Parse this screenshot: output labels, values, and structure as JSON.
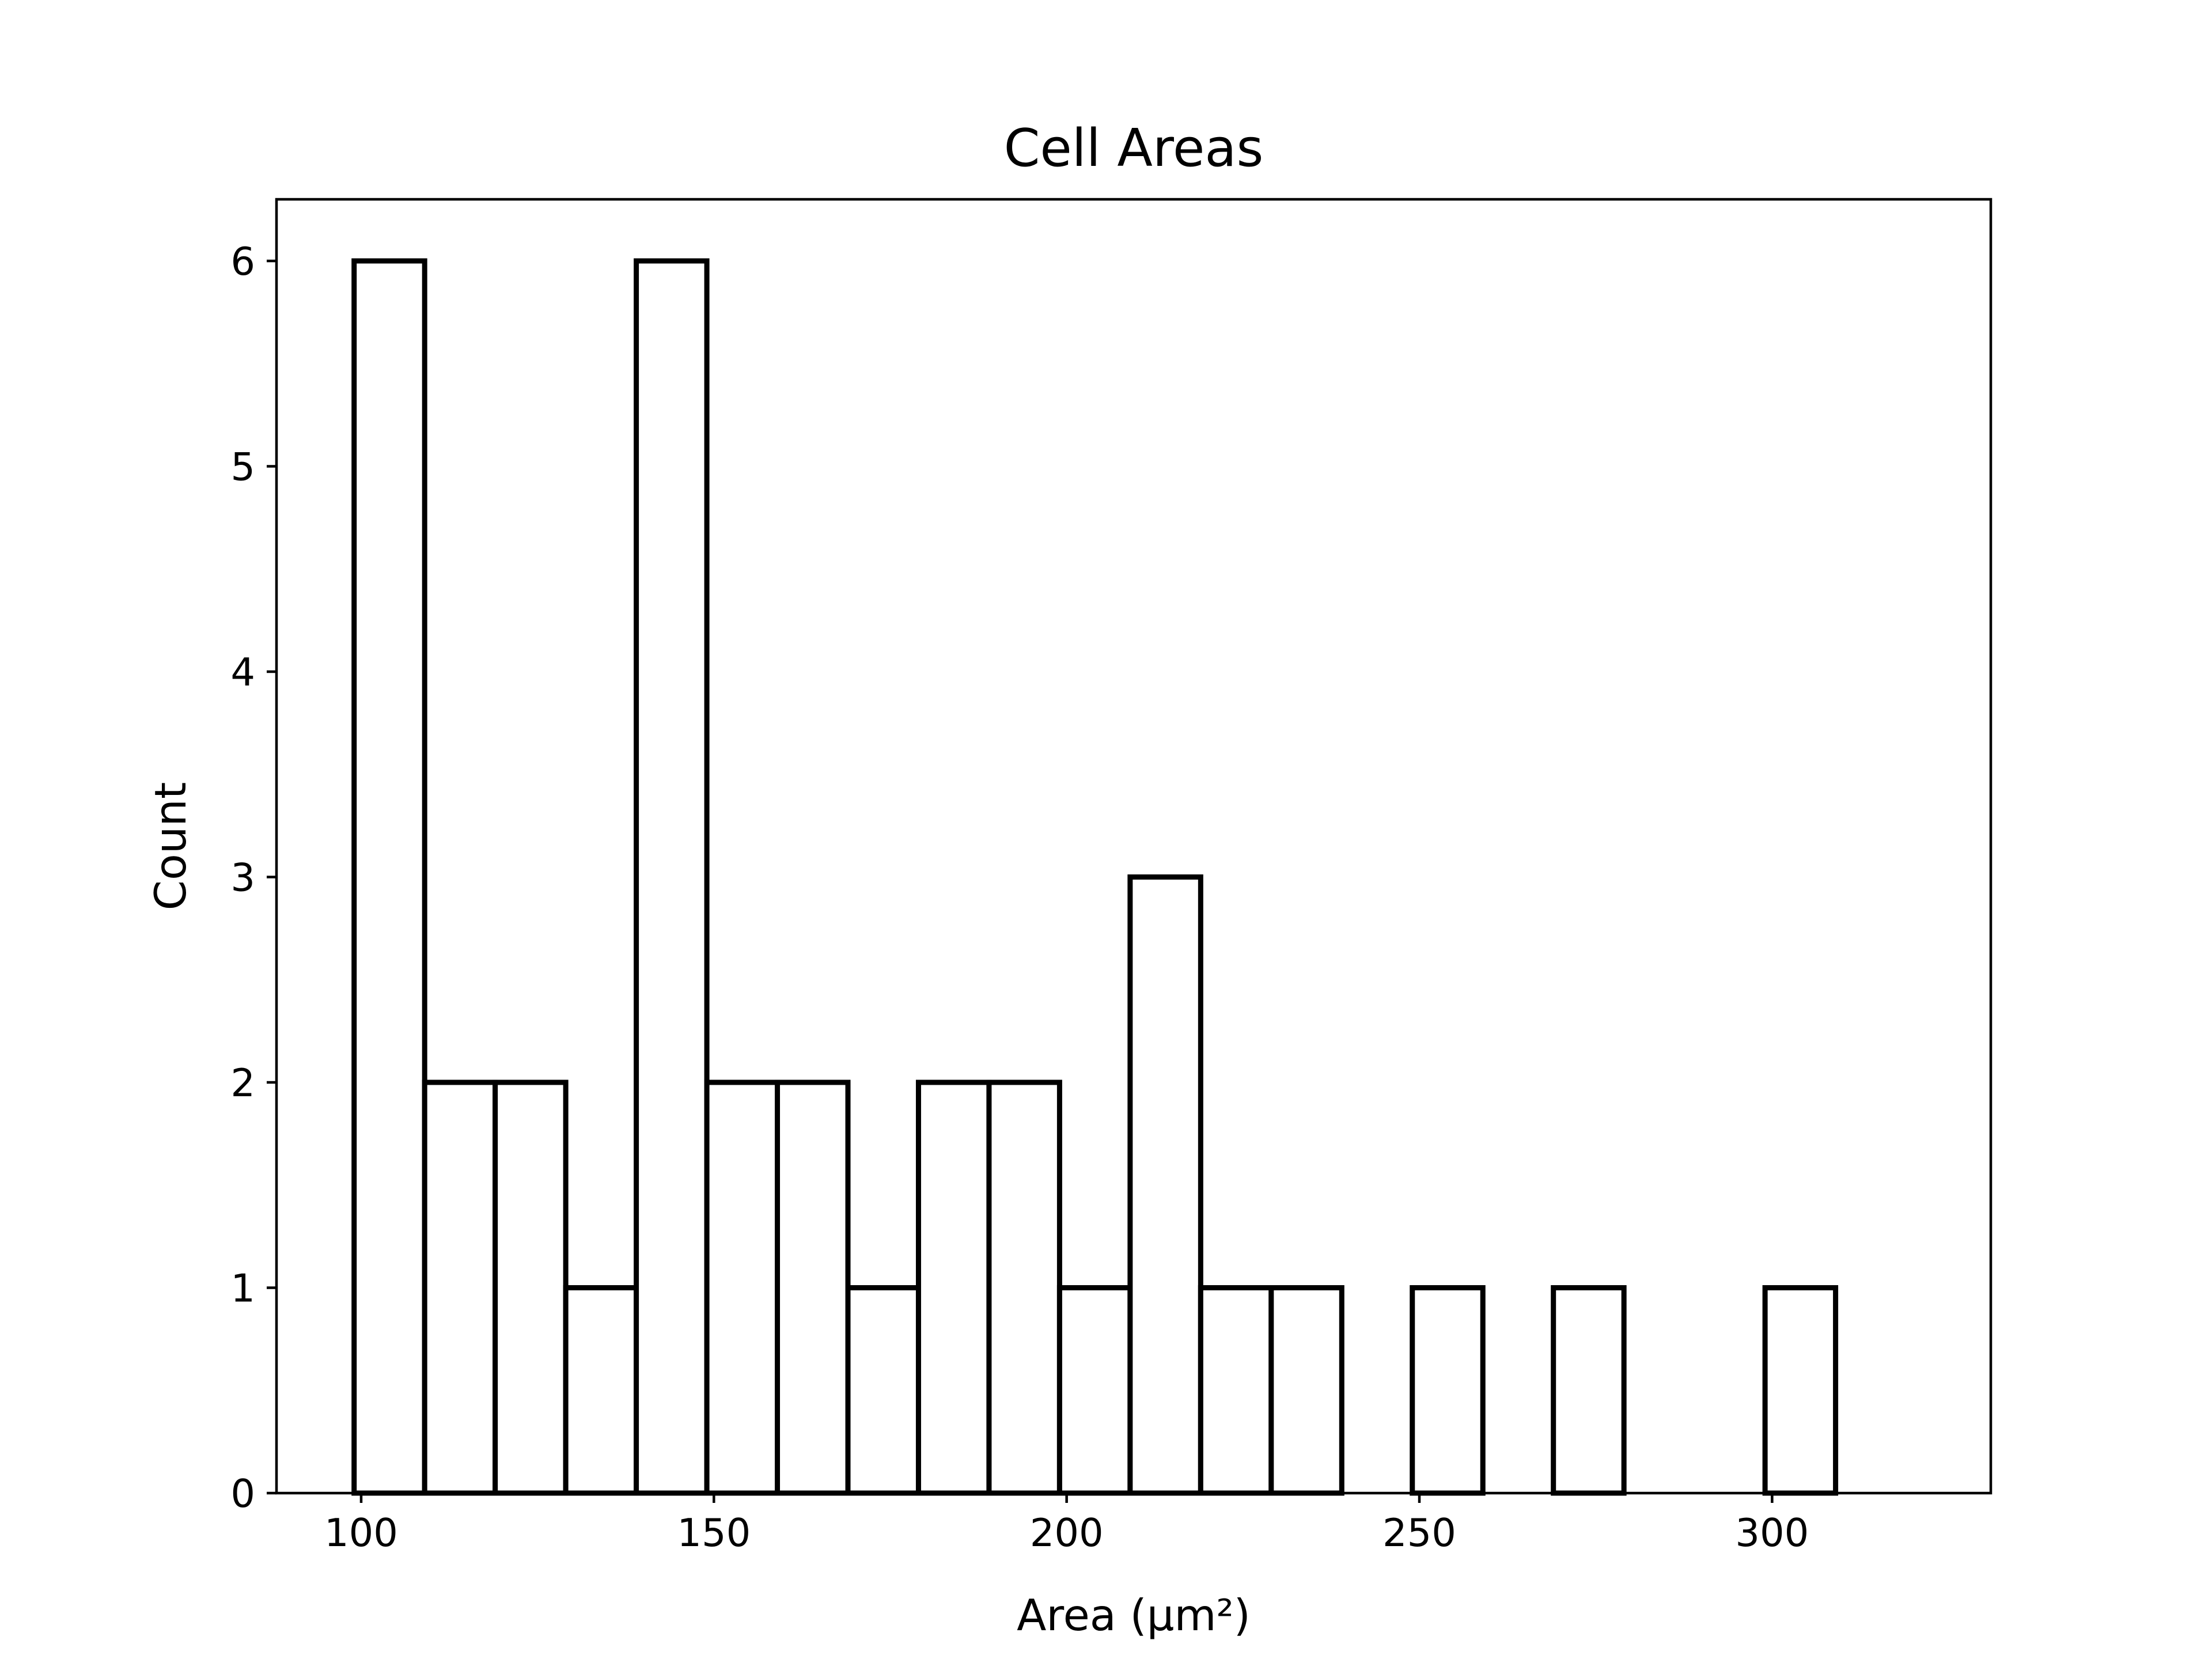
{
  "chart_data": {
    "type": "bar",
    "histogram": true,
    "title": "Cell Areas",
    "xlabel": "Area (µm²)",
    "ylabel": "Count",
    "xlim": [
      88,
      331
    ],
    "ylim": [
      0,
      6.3
    ],
    "xticks": [
      100,
      150,
      200,
      250,
      300
    ],
    "yticks": [
      0,
      1,
      2,
      3,
      4,
      5,
      6
    ],
    "bin_edges": [
      99,
      109,
      119,
      129,
      139,
      149,
      159,
      169,
      179,
      189,
      199,
      209,
      219,
      229,
      239,
      249,
      259,
      269,
      279,
      289,
      299,
      309,
      319
    ],
    "values": [
      6,
      2,
      2,
      1,
      6,
      2,
      2,
      1,
      2,
      2,
      1,
      3,
      1,
      1,
      0,
      1,
      0,
      1,
      0,
      0,
      1,
      0
    ],
    "grid": false,
    "colors": {
      "edge": "#000000",
      "fill": "#ffffff",
      "background": "#ffffff"
    }
  }
}
